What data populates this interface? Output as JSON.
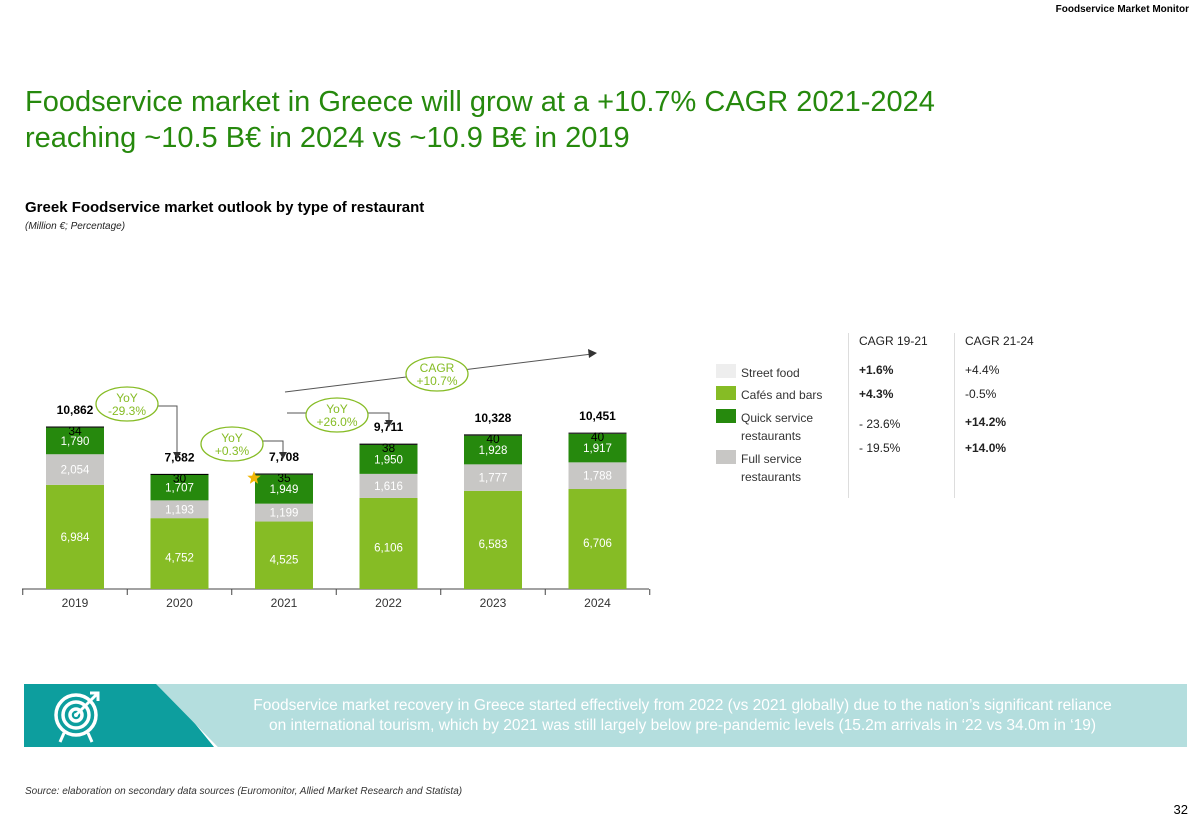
{
  "header": {
    "tag": "Foodservice Market Monitor"
  },
  "title": {
    "line1": "Foodservice market in Greece will grow at a +10.7% CAGR 2021-2024",
    "line2": "reaching ~10.5 B€ in 2024 vs ~10.9 B€ in 2019"
  },
  "chart_data": {
    "type": "bar",
    "stacked": true,
    "title": "Greek Foodservice market outlook by type of restaurant",
    "subtitle": "(Million €; Percentage)",
    "categories": [
      "2019",
      "2020",
      "2021",
      "2022",
      "2023",
      "2024"
    ],
    "totals": [
      "10,862",
      "7,682",
      "7,708",
      "9,711",
      "10,328",
      "10,451"
    ],
    "series": [
      {
        "name": "Cafés and bars",
        "color": "#86bc25",
        "values": [
          6984,
          4752,
          4525,
          6106,
          6583,
          6706
        ],
        "labels": [
          "6,984",
          "4,752",
          "4,525",
          "6,106",
          "6,583",
          "6,706"
        ]
      },
      {
        "name": "Full service restaurants",
        "color": "#c8c7c5",
        "values": [
          2054,
          1193,
          1199,
          1616,
          1777,
          1788
        ],
        "labels": [
          "2,054",
          "1,193",
          "1,199",
          "1,616",
          "1,777",
          "1,788"
        ]
      },
      {
        "name": "Quick service restaurants",
        "color": "#26890d",
        "values": [
          1790,
          1707,
          1949,
          1950,
          1928,
          1917
        ],
        "labels": [
          "1,790",
          "1,707",
          "1,949",
          "1,950",
          "1,928",
          "1,917"
        ]
      },
      {
        "name": "Street food",
        "color": "#eeeeee",
        "values": [
          34,
          30,
          35,
          38,
          40,
          40
        ],
        "labels": [
          "34",
          "30",
          "35",
          "38",
          "40",
          "40"
        ]
      }
    ],
    "annotations": {
      "yoy_2020": {
        "line1": "YoY",
        "line2": "-29.3%"
      },
      "yoy_2021": {
        "line1": "YoY",
        "line2": "+0.3%"
      },
      "yoy_2022": {
        "line1": "YoY",
        "line2": "+26.0%"
      },
      "cagr": {
        "line1": "CAGR",
        "line2": "+10.7%"
      }
    },
    "ylim": [
      0,
      11000
    ]
  },
  "legend": {
    "items": [
      {
        "label": "Street food",
        "color": "#eeeeee"
      },
      {
        "label": "Cafés and bars",
        "color": "#86bc25"
      },
      {
        "label": "Quick service restaurants",
        "color": "#26890d"
      },
      {
        "label": "Full service restaurants",
        "color": "#c8c7c5"
      }
    ]
  },
  "cagr_table": {
    "headers": [
      "CAGR 19-21",
      "CAGR 21-24"
    ],
    "col1": [
      {
        "value": "+1.6%",
        "bold": true
      },
      {
        "value": "+4.3%",
        "bold": true
      },
      {
        "value": "- 23.6%",
        "bold": false
      },
      {
        "value": "- 19.5%",
        "bold": false
      }
    ],
    "col2": [
      {
        "value": "+4.4%",
        "bold": false
      },
      {
        "value": "-0.5%",
        "bold": false
      },
      {
        "value": "+14.2%",
        "bold": true
      },
      {
        "value": "+14.0%",
        "bold": true
      }
    ]
  },
  "banner": {
    "icon": "target-icon",
    "text_line1": "Foodservice market recovery in Greece started effectively from 2022 (vs 2021 globally) due to the nation’s significant reliance",
    "text_line2": "on international tourism, which by 2021 was still largely below pre-pandemic levels (15.2m arrivals in ‘22 vs 34.0m in ‘19)"
  },
  "source": "Source: elaboration on secondary data sources (Euromonitor, Allied Market Research and Statista)",
  "page_number": "32",
  "colors": {
    "accent": "#26890d",
    "teal": "#0d9e9e",
    "teal_light": "#b4dede",
    "star": "#f2b705"
  }
}
